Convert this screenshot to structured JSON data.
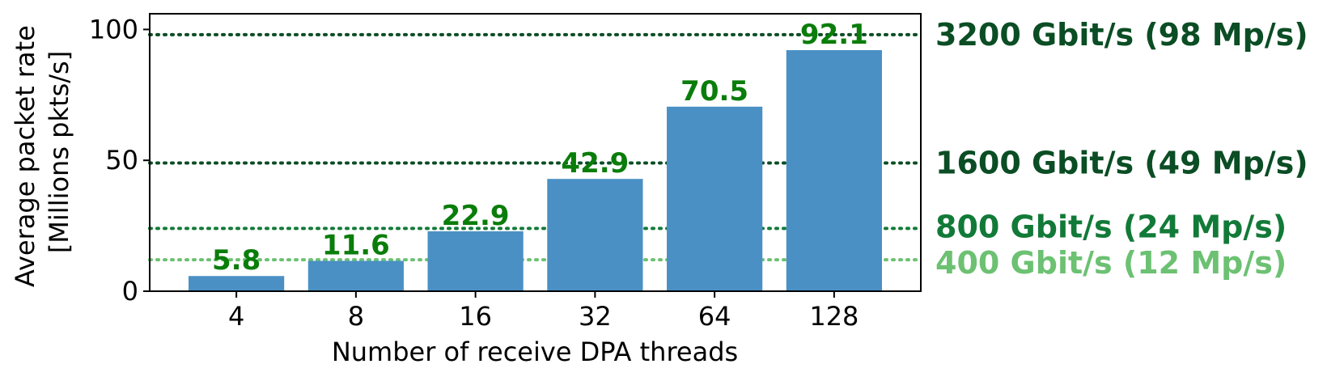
{
  "chart_data": {
    "type": "bar",
    "categories": [
      "4",
      "8",
      "16",
      "32",
      "64",
      "128"
    ],
    "values": [
      5.8,
      11.6,
      22.9,
      42.9,
      70.5,
      92.1
    ],
    "value_labels": [
      "5.8",
      "11.6",
      "22.9",
      "42.9",
      "70.5",
      "92.1"
    ],
    "xlabel": "Number of receive DPA threads",
    "ylabel_lines": [
      "Average packet rate",
      "[Millions pkts/s]"
    ],
    "ylim": [
      0,
      106
    ],
    "yticks": [
      0,
      50,
      100
    ],
    "ytick_labels": [
      "0",
      "50",
      "100"
    ],
    "bar_color": "#4a90c4",
    "bar_label_color": "#0a7d0a",
    "grid": false,
    "reference_lines": [
      {
        "value": 98,
        "label": "3200 Gbit/s (98 Mp/s)",
        "color": "#0b4d24"
      },
      {
        "value": 49,
        "label": "1600 Gbit/s (49 Mp/s)",
        "color": "#0b4d24"
      },
      {
        "value": 24,
        "label": "800 Gbit/s (24 Mp/s)",
        "color": "#127a38"
      },
      {
        "value": 12,
        "label": "400 Gbit/s (12 Mp/s)",
        "color": "#6cc172"
      }
    ]
  }
}
